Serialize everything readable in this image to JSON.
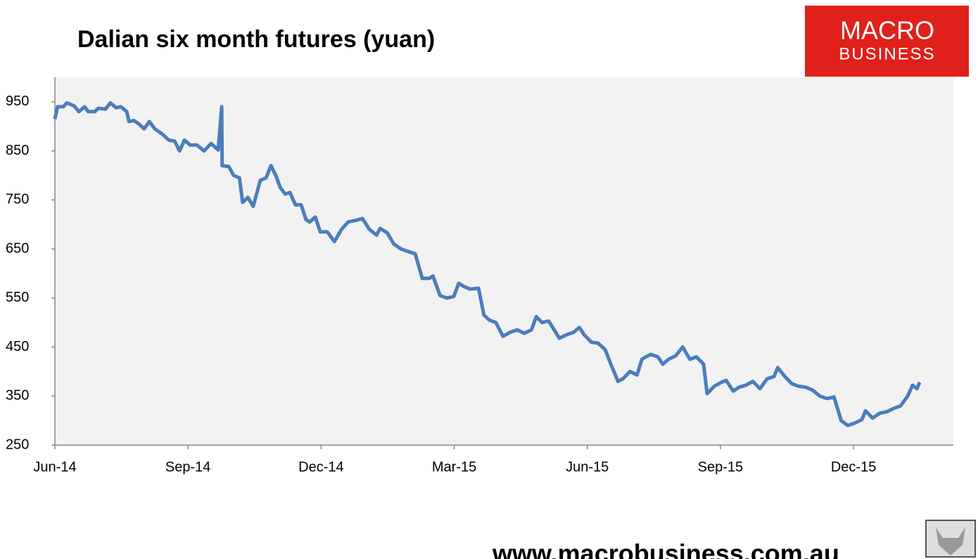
{
  "chart_data": {
    "type": "line",
    "title": "Dalian six month futures (yuan)",
    "color": "#4a7ebb",
    "x": [
      0,
      0.06,
      0.19,
      0.27,
      0.43,
      0.54,
      0.67,
      0.75,
      0.9,
      0.98,
      1.14,
      1.25,
      1.38,
      1.49,
      1.62,
      1.67,
      1.78,
      1.89,
      2.01,
      2.13,
      2.25,
      2.41,
      2.57,
      2.7,
      2.81,
      2.92,
      3.05,
      3.2,
      3.36,
      3.52,
      3.68,
      3.76,
      3.77,
      3.92,
      4.03,
      4.16,
      4.23,
      4.35,
      4.47,
      4.63,
      4.76,
      4.87,
      4.98,
      5.08,
      5.19,
      5.3,
      5.42,
      5.55,
      5.66,
      5.74,
      5.87,
      5.98,
      6.14,
      6.3,
      6.46,
      6.61,
      6.77,
      6.93,
      7.09,
      7.25,
      7.33,
      7.49,
      7.64,
      7.8,
      7.96,
      8.12,
      8.28,
      8.44,
      8.52,
      8.68,
      8.83,
      8.99,
      9.1,
      9.23,
      9.36,
      9.55,
      9.67,
      9.79,
      9.94,
      10.1,
      10.26,
      10.42,
      10.58,
      10.74,
      10.85,
      10.98,
      11.13,
      11.37,
      11.53,
      11.69,
      11.82,
      11.93,
      12.09,
      12.24,
      12.4,
      12.53,
      12.69,
      12.8,
      12.96,
      13.12,
      13.23,
      13.32,
      13.43,
      13.59,
      13.7,
      13.83,
      13.99,
      14.15,
      14.31,
      14.46,
      14.62,
      14.7,
      14.86,
      15.02,
      15.13,
      15.29,
      15.42,
      15.57,
      15.73,
      15.89,
      16.05,
      16.21,
      16.29,
      16.45,
      16.61,
      16.76,
      16.92,
      17.08,
      17.24,
      17.4,
      17.56,
      17.72,
      17.87,
      18.03,
      18.19,
      18.27,
      18.43,
      18.59,
      18.75,
      18.91,
      19.06,
      19.22,
      19.33,
      19.43,
      19.49
    ],
    "values": [
      915,
      940,
      940,
      948,
      942,
      930,
      940,
      930,
      930,
      937,
      935,
      948,
      938,
      940,
      930,
      910,
      912,
      905,
      895,
      910,
      895,
      885,
      872,
      870,
      850,
      872,
      862,
      862,
      850,
      865,
      852,
      940,
      820,
      818,
      800,
      795,
      745,
      755,
      737,
      790,
      795,
      820,
      800,
      775,
      762,
      765,
      740,
      740,
      710,
      705,
      715,
      685,
      685,
      665,
      690,
      705,
      708,
      712,
      690,
      678,
      692,
      683,
      660,
      650,
      645,
      640,
      590,
      590,
      595,
      555,
      550,
      553,
      580,
      573,
      568,
      570,
      515,
      505,
      500,
      472,
      480,
      485,
      478,
      485,
      512,
      500,
      503,
      468,
      475,
      480,
      490,
      475,
      460,
      458,
      445,
      415,
      380,
      385,
      400,
      393,
      425,
      430,
      435,
      430,
      415,
      425,
      432,
      450,
      425,
      430,
      415,
      355,
      370,
      378,
      382,
      360,
      368,
      372,
      380,
      365,
      385,
      390,
      408,
      390,
      375,
      370,
      368,
      362,
      350,
      345,
      348,
      300,
      290,
      295,
      302,
      320,
      305,
      315,
      318,
      325,
      330,
      350,
      372,
      365,
      378
    ],
    "xlim": [
      0,
      20.25
    ],
    "xticks": [
      {
        "value": 0,
        "label": "Jun-14"
      },
      {
        "value": 3,
        "label": "Sep-14"
      },
      {
        "value": 6,
        "label": "Dec-14"
      },
      {
        "value": 9,
        "label": "Mar-15"
      },
      {
        "value": 12,
        "label": "Jun-15"
      },
      {
        "value": 15,
        "label": "Sep-15"
      },
      {
        "value": 18,
        "label": "Dec-15"
      }
    ],
    "ylim": [
      250,
      1000
    ],
    "yticks": [
      250,
      350,
      450,
      550,
      650,
      750,
      850,
      950
    ]
  },
  "logo": {
    "line1": "MACRO",
    "line2": "BUSINESS"
  },
  "footer": "www.macrobusiness.com.au"
}
